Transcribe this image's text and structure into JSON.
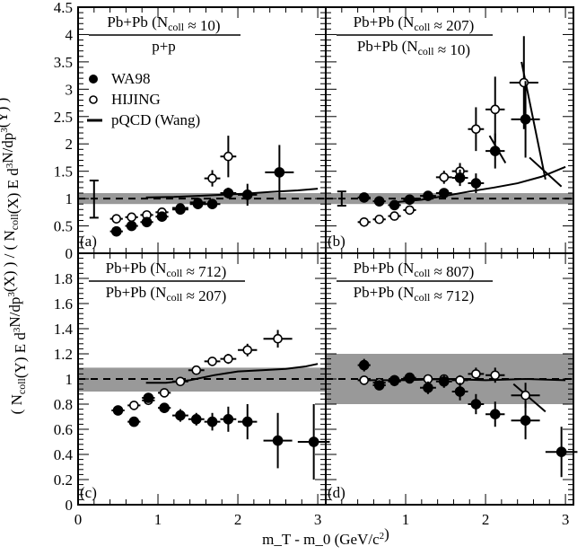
{
  "chart_data": {
    "type": "scatter",
    "y_axis_title": "( N_coll(Y) E d³N/dp³(X) ) / ( N_coll(X) E d³N/dp³(Y) )",
    "x_axis_title": "m_T - m_0 (GeV/c²)",
    "legend": [
      {
        "name": "WA98",
        "marker": "filled-circle"
      },
      {
        "name": "HIJING",
        "marker": "open-circle"
      },
      {
        "name": "pQCD (Wang)",
        "marker": "line"
      }
    ],
    "panels": [
      {
        "id": "a",
        "label": "(a)",
        "num": "Pb+Pb (N_coll ≈ 10)",
        "den": "p+p",
        "xlim": [
          0,
          3.1
        ],
        "ylim": [
          0,
          4.5
        ],
        "yticks": [
          0,
          0.5,
          1,
          1.5,
          2,
          2.5,
          3,
          3.5,
          4,
          4.5
        ],
        "band": [
          0.9,
          1.1
        ],
        "sys_bar": {
          "x": 0.2,
          "ylo": 0.65,
          "yhi": 1.33
        },
        "wa98": [
          [
            0.48,
            0.4,
            0.08,
            0.04
          ],
          [
            0.67,
            0.5,
            0.08,
            0.04
          ],
          [
            0.86,
            0.57,
            0.08,
            0.05
          ],
          [
            1.05,
            0.67,
            0.08,
            0.05
          ],
          [
            1.28,
            0.8,
            0.1,
            0.06
          ],
          [
            1.5,
            0.9,
            0.1,
            0.06
          ],
          [
            1.68,
            0.9,
            0.1,
            0.06
          ],
          [
            1.88,
            1.1,
            0.1,
            0.1
          ],
          [
            2.12,
            1.07,
            0.12,
            0.2
          ],
          [
            2.52,
            1.48,
            0.18,
            0.5
          ]
        ],
        "hijing": [
          [
            0.48,
            0.63,
            0.08,
            0.04
          ],
          [
            0.67,
            0.66,
            0.08,
            0.04
          ],
          [
            0.86,
            0.7,
            0.08,
            0.05
          ],
          [
            1.05,
            0.75,
            0.08,
            0.05
          ],
          [
            1.28,
            0.83,
            0.1,
            0.06
          ],
          [
            1.5,
            0.93,
            0.1,
            0.07
          ],
          [
            1.68,
            1.37,
            0.1,
            0.15
          ],
          [
            1.88,
            1.77,
            0.1,
            0.38
          ]
        ],
        "pqcd": [
          [
            0.85,
            1.02
          ],
          [
            1.2,
            1.03
          ],
          [
            1.5,
            1.05
          ],
          [
            1.8,
            1.07
          ],
          [
            2.1,
            1.09
          ],
          [
            2.4,
            1.12
          ],
          [
            2.75,
            1.15
          ],
          [
            3.0,
            1.18
          ]
        ]
      },
      {
        "id": "b",
        "label": "(b)",
        "num": "Pb+Pb (N_coll ≈ 207)",
        "den": "Pb+Pb (N_coll ≈ 10)",
        "xlim": [
          0,
          3.1
        ],
        "ylim": [
          0,
          4.5
        ],
        "yticks": [
          0,
          0.5,
          1,
          1.5,
          2,
          2.5,
          3,
          3.5,
          4,
          4.5
        ],
        "band": [
          0.9,
          1.1
        ],
        "sys_bar": {
          "x": 0.2,
          "ylo": 0.87,
          "yhi": 1.13
        },
        "wa98": [
          [
            0.48,
            1.02,
            0.08,
            0.05
          ],
          [
            0.67,
            0.95,
            0.08,
            0.05
          ],
          [
            0.86,
            0.88,
            0.08,
            0.05
          ],
          [
            1.05,
            0.98,
            0.08,
            0.05
          ],
          [
            1.28,
            1.05,
            0.1,
            0.06
          ],
          [
            1.48,
            1.1,
            0.1,
            0.08
          ],
          [
            1.68,
            1.38,
            0.1,
            0.15
          ],
          [
            1.88,
            1.28,
            0.1,
            0.18
          ],
          [
            2.12,
            1.87,
            0.12,
            0.32
          ],
          [
            2.5,
            2.45,
            0.18,
            0.7
          ]
        ],
        "hijing": [
          [
            0.48,
            0.57,
            0.08,
            0.04
          ],
          [
            0.67,
            0.62,
            0.08,
            0.04
          ],
          [
            0.86,
            0.68,
            0.08,
            0.05
          ],
          [
            1.05,
            0.79,
            0.08,
            0.05
          ],
          [
            1.48,
            1.39,
            0.1,
            0.12
          ],
          [
            1.68,
            1.5,
            0.1,
            0.15
          ],
          [
            1.88,
            2.27,
            0.1,
            0.4
          ],
          [
            2.12,
            2.63,
            0.12,
            0.6
          ],
          [
            2.48,
            3.12,
            0.18,
            0.85
          ]
        ],
        "pqcd": [
          [
            0.85,
            0.93
          ],
          [
            1.2,
            0.98
          ],
          [
            1.5,
            1.05
          ],
          [
            1.8,
            1.13
          ],
          [
            2.1,
            1.2
          ],
          [
            2.4,
            1.28
          ],
          [
            2.7,
            1.4
          ],
          [
            3.0,
            1.58
          ]
        ],
        "pqcd_extra": [
          [
            [
              2.05,
              2.15
            ],
            [
              2.25,
              1.65
            ]
          ],
          [
            [
              2.45,
              3.5
            ],
            [
              2.75,
              1.35
            ]
          ],
          [
            [
              2.55,
              1.75
            ],
            [
              2.95,
              1.22
            ]
          ]
        ]
      },
      {
        "id": "c",
        "label": "(c)",
        "num": "Pb+Pb (N_coll ≈ 712)",
        "den": "Pb+Pb (N_coll ≈ 207)",
        "xlim": [
          0,
          3.1
        ],
        "ylim": [
          0,
          2.0
        ],
        "yticks": [
          0,
          0.2,
          0.4,
          0.6,
          0.8,
          1,
          1.2,
          1.4,
          1.6,
          1.8
        ],
        "band": [
          0.9,
          1.09
        ],
        "wa98": [
          [
            0.5,
            0.75,
            0.08,
            0.04
          ],
          [
            0.7,
            0.66,
            0.08,
            0.03
          ],
          [
            0.88,
            0.85,
            0.08,
            0.04
          ],
          [
            1.08,
            0.77,
            0.08,
            0.04
          ],
          [
            1.28,
            0.71,
            0.1,
            0.05
          ],
          [
            1.48,
            0.68,
            0.1,
            0.05
          ],
          [
            1.68,
            0.66,
            0.1,
            0.07
          ],
          [
            1.88,
            0.68,
            0.1,
            0.1
          ],
          [
            2.12,
            0.66,
            0.12,
            0.14
          ],
          [
            2.5,
            0.51,
            0.18,
            0.22
          ],
          [
            2.95,
            0.5,
            0.2,
            0.3
          ]
        ],
        "hijing": [
          [
            0.5,
            0.75,
            0.08,
            0.03
          ],
          [
            0.7,
            0.79,
            0.08,
            0.03
          ],
          [
            0.88,
            0.83,
            0.08,
            0.03
          ],
          [
            1.08,
            0.89,
            0.08,
            0.03
          ],
          [
            1.28,
            0.98,
            0.1,
            0.03
          ],
          [
            1.48,
            1.07,
            0.1,
            0.03
          ],
          [
            1.68,
            1.14,
            0.1,
            0.03
          ],
          [
            1.88,
            1.16,
            0.1,
            0.04
          ],
          [
            2.12,
            1.23,
            0.12,
            0.05
          ],
          [
            2.5,
            1.32,
            0.18,
            0.07
          ]
        ],
        "pqcd": [
          [
            0.85,
            0.97
          ],
          [
            1.1,
            0.97
          ],
          [
            1.4,
            0.99
          ],
          [
            1.7,
            1.03
          ],
          [
            2.0,
            1.06
          ],
          [
            2.3,
            1.07
          ],
          [
            2.6,
            1.08
          ],
          [
            2.85,
            1.1
          ],
          [
            3.0,
            1.12
          ]
        ]
      },
      {
        "id": "d",
        "label": "(d)",
        "num": "Pb+Pb (N_coll ≈ 807)",
        "den": "Pb+Pb (N_coll ≈ 712)",
        "xlim": [
          0,
          3.1
        ],
        "ylim": [
          0,
          2.0
        ],
        "yticks": [
          0,
          0.2,
          0.4,
          0.6,
          0.8,
          1,
          1.2,
          1.4,
          1.6,
          1.8
        ],
        "band": [
          0.8,
          1.2
        ],
        "wa98": [
          [
            0.48,
            1.11,
            0.08,
            0.05
          ],
          [
            0.67,
            0.95,
            0.08,
            0.04
          ],
          [
            0.86,
            0.99,
            0.08,
            0.04
          ],
          [
            1.05,
            1.01,
            0.08,
            0.04
          ],
          [
            1.28,
            0.93,
            0.1,
            0.05
          ],
          [
            1.48,
            0.98,
            0.1,
            0.05
          ],
          [
            1.68,
            0.9,
            0.1,
            0.07
          ],
          [
            1.88,
            0.8,
            0.1,
            0.08
          ],
          [
            2.12,
            0.72,
            0.12,
            0.1
          ],
          [
            2.5,
            0.67,
            0.18,
            0.15
          ],
          [
            2.95,
            0.42,
            0.2,
            0.2
          ]
        ],
        "hijing": [
          [
            0.48,
            0.99,
            0.08,
            0.03
          ],
          [
            0.67,
            0.97,
            0.08,
            0.03
          ],
          [
            0.86,
            0.98,
            0.08,
            0.03
          ],
          [
            1.05,
            1.0,
            0.08,
            0.03
          ],
          [
            1.28,
            1.0,
            0.1,
            0.03
          ],
          [
            1.48,
            1.0,
            0.1,
            0.03
          ],
          [
            1.68,
            0.99,
            0.1,
            0.04
          ],
          [
            1.88,
            1.04,
            0.1,
            0.05
          ],
          [
            2.12,
            1.03,
            0.12,
            0.06
          ],
          [
            2.5,
            0.87,
            0.18,
            0.1
          ]
        ],
        "pqcd": [
          [
            0.5,
            0.99
          ],
          [
            1.0,
            0.99
          ],
          [
            1.5,
            1.0
          ],
          [
            2.0,
            0.99
          ],
          [
            2.5,
            1.0
          ],
          [
            3.0,
            0.99
          ]
        ],
        "pqcd_extra": [
          [
            [
              2.35,
              0.96
            ],
            [
              2.75,
              0.74
            ]
          ]
        ]
      }
    ],
    "x_tick_labels": [
      0,
      1,
      2,
      3
    ]
  }
}
